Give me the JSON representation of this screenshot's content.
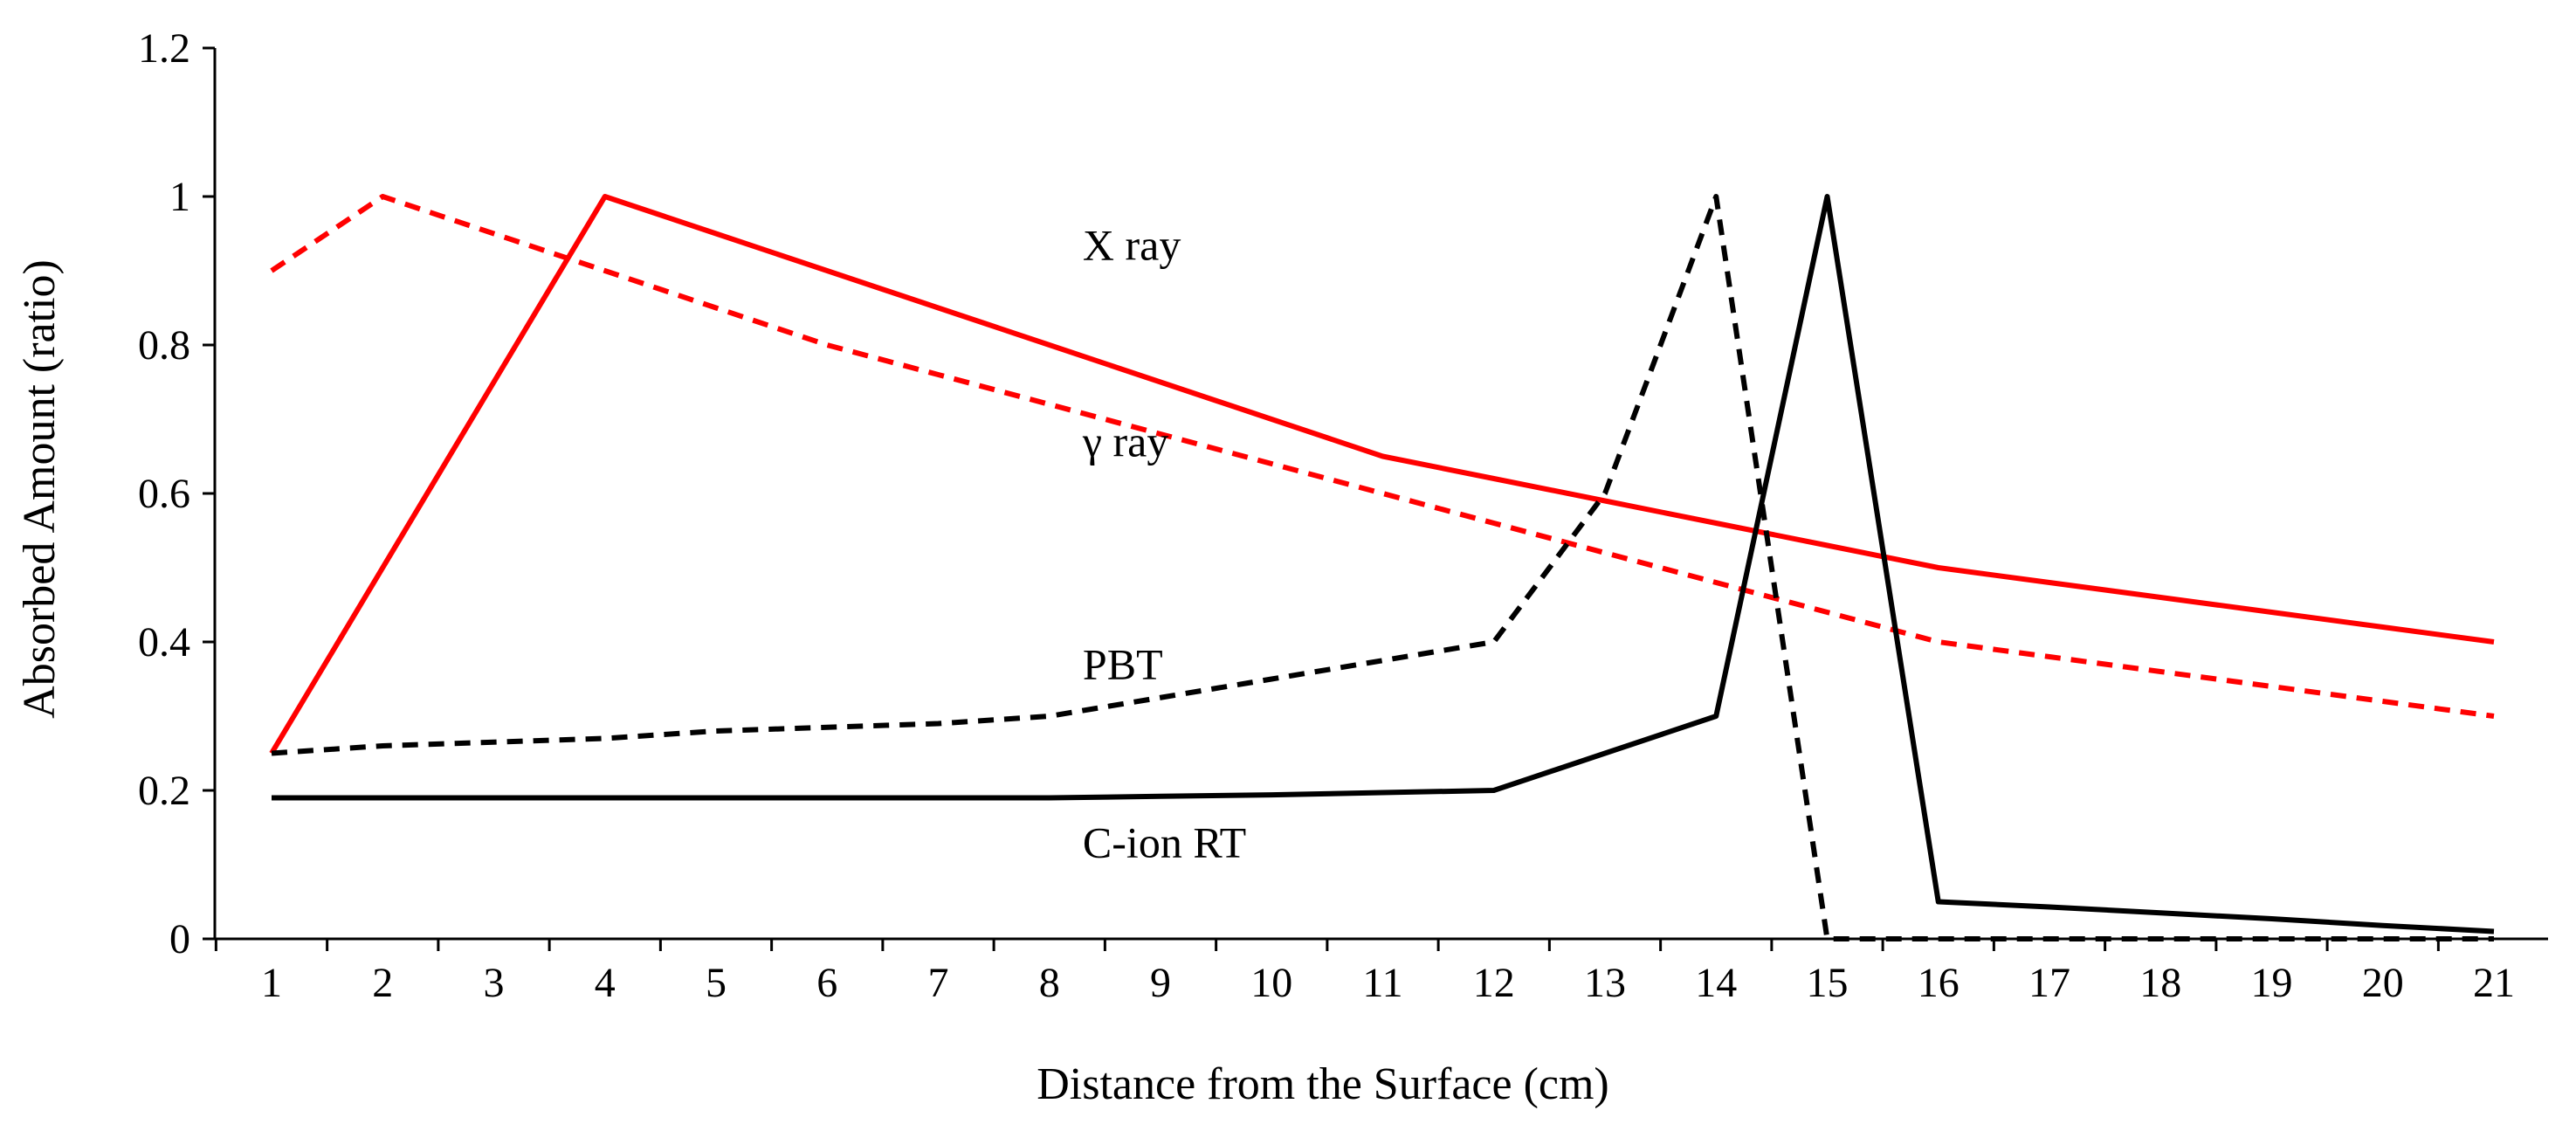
{
  "chart_data": {
    "type": "line",
    "title": "",
    "xlabel": "Distance from the Surface (cm)",
    "ylabel": "Absorbed Amount (ratio)",
    "x": [
      1,
      2,
      3,
      4,
      5,
      6,
      7,
      8,
      9,
      10,
      11,
      12,
      13,
      14,
      15,
      16,
      17,
      18,
      19,
      20,
      21
    ],
    "xlim": [
      1,
      21
    ],
    "ylim": [
      0,
      1.2
    ],
    "yticks": [
      "0",
      "0.2",
      "0.4",
      "0.6",
      "0.8",
      "1",
      "1.2"
    ],
    "grid": false,
    "legend": "none (inline annotations)",
    "series": [
      {
        "name": "X ray",
        "color": "#ff0000",
        "dash": "solid",
        "values": [
          0.25,
          0.5,
          0.75,
          1.0,
          0.95,
          0.9,
          0.85,
          0.8,
          0.75,
          0.7,
          0.65,
          0.62,
          0.59,
          0.56,
          0.53,
          0.5,
          0.48,
          0.46,
          0.44,
          0.42,
          0.4
        ]
      },
      {
        "name": "γ ray",
        "color": "#ff0000",
        "dash": "dashed",
        "values": [
          0.9,
          1.0,
          0.95,
          0.9,
          0.85,
          0.8,
          0.76,
          0.72,
          0.68,
          0.64,
          0.6,
          0.56,
          0.52,
          0.48,
          0.44,
          0.4,
          0.38,
          0.36,
          0.34,
          0.32,
          0.3
        ]
      },
      {
        "name": "PBT",
        "color": "#000000",
        "dash": "dashed",
        "values": [
          0.25,
          0.26,
          0.265,
          0.27,
          0.28,
          0.285,
          0.29,
          0.3,
          0.325,
          0.35,
          0.375,
          0.4,
          0.6,
          1.0,
          0.0,
          0.0,
          0.0,
          0.0,
          0.0,
          0.0,
          0.0
        ]
      },
      {
        "name": "C-ion RT",
        "color": "#000000",
        "dash": "solid",
        "values": [
          0.19,
          0.19,
          0.19,
          0.19,
          0.19,
          0.19,
          0.19,
          0.19,
          0.192,
          0.194,
          0.197,
          0.2,
          0.25,
          0.3,
          1.0,
          0.05,
          0.043,
          0.035,
          0.027,
          0.018,
          0.01
        ]
      }
    ],
    "annotations": [
      {
        "text": "X ray",
        "x": 8.3,
        "y": 0.915
      },
      {
        "text": "γ ray",
        "x": 8.3,
        "y": 0.65
      },
      {
        "text": "PBT",
        "x": 8.3,
        "y": 0.35
      },
      {
        "text": "C-ion RT",
        "x": 8.3,
        "y": 0.11
      }
    ]
  }
}
